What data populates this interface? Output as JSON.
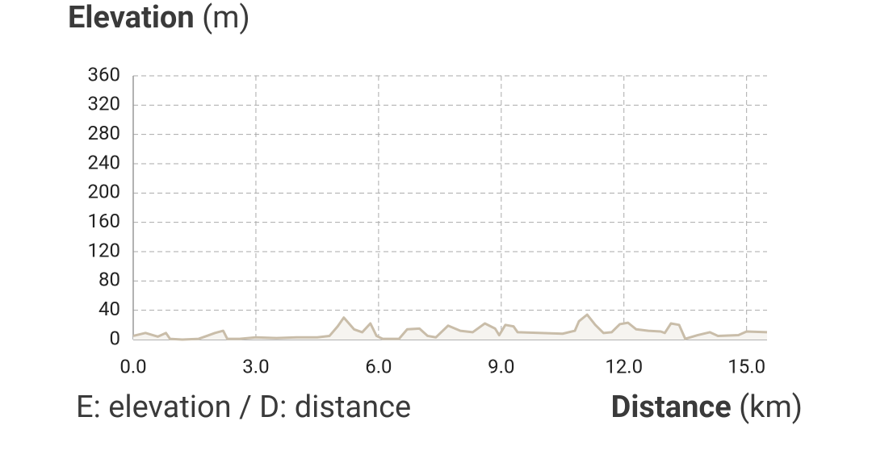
{
  "chart_data": {
    "type": "area",
    "y_axis_label": "Elevation",
    "y_axis_unit": "(m)",
    "x_axis_label": "Distance",
    "x_axis_unit": "(km)",
    "note": "E: elevation / D: distance",
    "x": [
      0,
      0.3,
      0.6,
      0.8,
      0.9,
      1.2,
      1.6,
      2.0,
      2.2,
      2.3,
      2.6,
      3.0,
      3.5,
      4.0,
      4.5,
      4.8,
      5.0,
      5.15,
      5.4,
      5.6,
      5.8,
      5.95,
      6.1,
      6.5,
      6.7,
      7.0,
      7.2,
      7.4,
      7.7,
      8.0,
      8.3,
      8.6,
      8.85,
      8.95,
      9.1,
      9.3,
      9.4,
      10.0,
      10.5,
      10.8,
      10.9,
      11.1,
      11.3,
      11.5,
      11.7,
      11.9,
      12.1,
      12.3,
      12.6,
      12.9,
      13.0,
      13.15,
      13.35,
      13.5,
      13.8,
      14.1,
      14.3,
      14.8,
      15.0,
      15.5
    ],
    "series": [
      {
        "name": "Elevation",
        "color": "#c9bda9",
        "fill": "#f6f4f0",
        "values": [
          5,
          9,
          4,
          9,
          1,
          0,
          1,
          9,
          12,
          1,
          1,
          3,
          2,
          3,
          3,
          5,
          18,
          30,
          14,
          10,
          22,
          5,
          1,
          1,
          14,
          15,
          5,
          3,
          19,
          12,
          10,
          22,
          15,
          6,
          20,
          18,
          10,
          9,
          8,
          12,
          25,
          34,
          20,
          9,
          10,
          21,
          23,
          14,
          12,
          11,
          9,
          22,
          20,
          1,
          6,
          10,
          5,
          6,
          11,
          10
        ]
      }
    ],
    "xlim": [
      0,
      15.5
    ],
    "ylim": [
      0,
      360
    ],
    "xticks": [
      {
        "value": 0,
        "label": "0.0"
      },
      {
        "value": 3,
        "label": "3.0"
      },
      {
        "value": 6,
        "label": "6.0"
      },
      {
        "value": 9,
        "label": "9.0"
      },
      {
        "value": 12,
        "label": "12.0"
      },
      {
        "value": 15,
        "label": "15.0"
      }
    ],
    "yticks": [
      0,
      40,
      80,
      120,
      160,
      200,
      240,
      280,
      320,
      360
    ],
    "grid": true
  }
}
